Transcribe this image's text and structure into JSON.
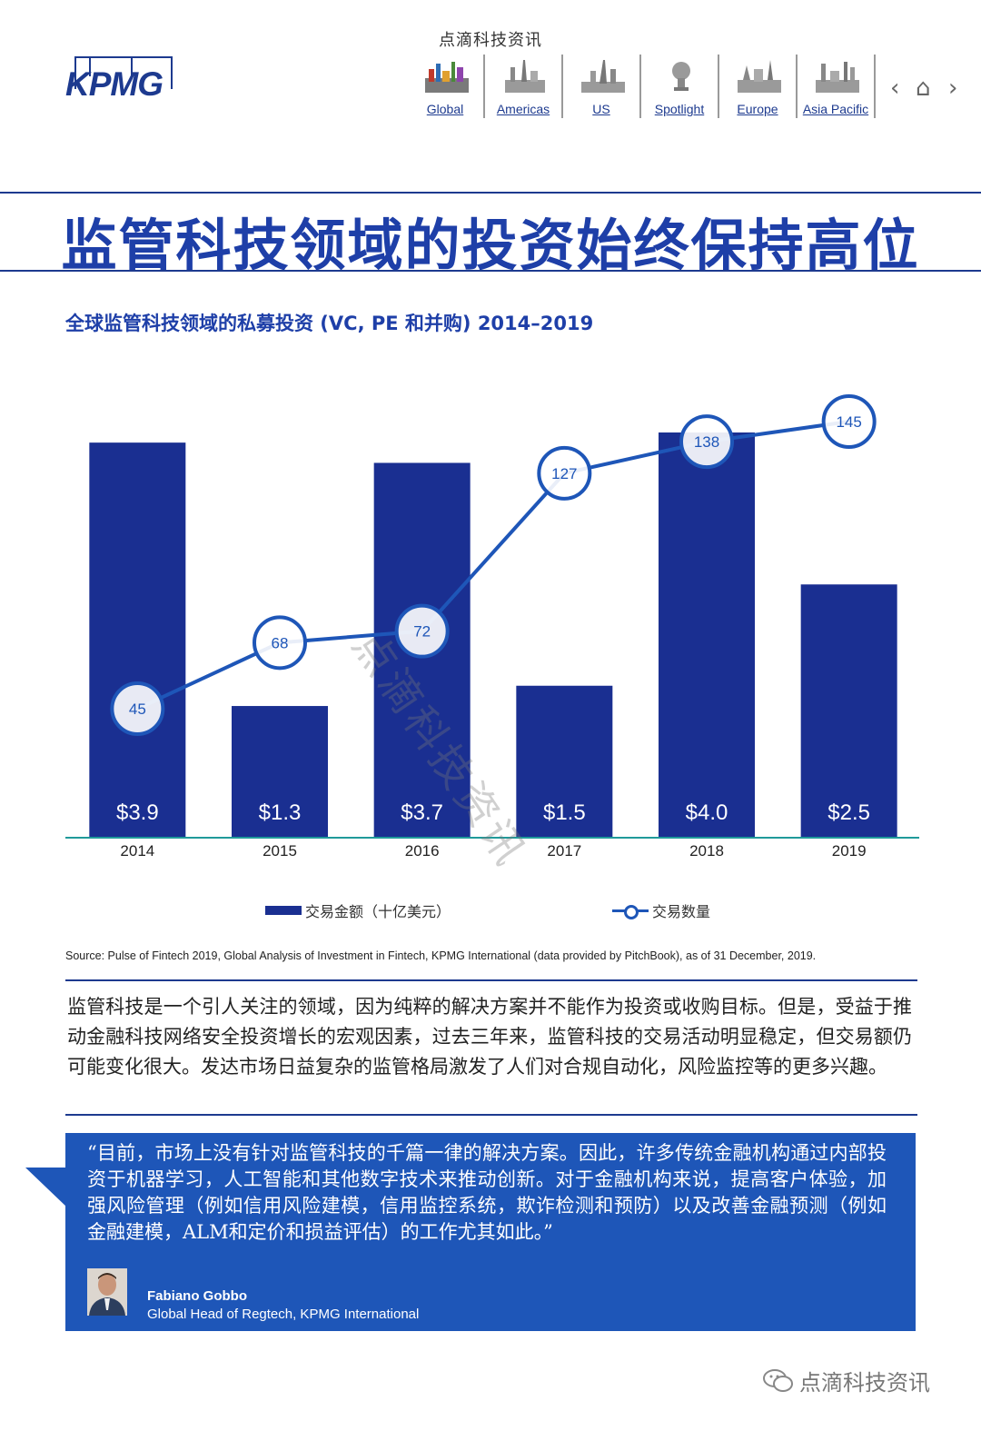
{
  "header": {
    "caption": "点滴科技资讯",
    "logo": "KPMG",
    "nav": [
      {
        "label": "Global",
        "icon": "global-skyline-icon"
      },
      {
        "label": "Americas",
        "icon": "americas-skyline-icon"
      },
      {
        "label": "US",
        "icon": "us-skyline-icon"
      },
      {
        "label": "Spotlight",
        "icon": "spotlight-icon"
      },
      {
        "label": "Europe",
        "icon": "europe-skyline-icon"
      },
      {
        "label": "Asia Pacific",
        "icon": "asia-pacific-skyline-icon"
      }
    ],
    "arrows": {
      "prev": "‹",
      "home": "⌂",
      "next": "›"
    }
  },
  "page_title": "监管科技领域的投资始终保持高位",
  "chart_title": "全球监管科技领域的私募投资 (VC, PE 和并购) 2014–2019",
  "chart_data": {
    "type": "bar",
    "categories": [
      "2014",
      "2015",
      "2016",
      "2017",
      "2018",
      "2019"
    ],
    "series": [
      {
        "name": "交易金额（十亿美元）",
        "type": "bar",
        "values": [
          3.9,
          1.3,
          3.7,
          1.5,
          4.0,
          2.5
        ],
        "labels": [
          "$3.9",
          "$1.3",
          "$3.7",
          "$1.5",
          "$4.0",
          "$2.5"
        ]
      },
      {
        "name": "交易数量",
        "type": "line",
        "values": [
          45,
          68,
          72,
          127,
          138,
          145
        ],
        "labels": [
          "45",
          "68",
          "72",
          "127",
          "138",
          "145"
        ]
      }
    ],
    "legend_position": "bottom",
    "grid": false,
    "colors": {
      "bar": "#1a2f91",
      "line": "#1e56b8",
      "axis": "#1f9a9a"
    }
  },
  "legend": {
    "bar_label": "交易金额（十亿美元）",
    "line_label": "交易数量"
  },
  "source": "Source: Pulse of Fintech 2019, Global Analysis of Investment in Fintech, KPMG International (data provided by PitchBook), as of 31 December, 2019.",
  "body_text": "监管科技是一个引人关注的领域，因为纯粹的解决方案并不能作为投资或收购目标。但是，受益于推动金融科技网络安全投资增长的宏观因素，过去三年来，监管科技的交易活动明显稳定，但交易额仍可能变化很大。发达市场日益复杂的监管格局激发了人们对合规自动化，风险监控等的更多兴趣。",
  "quote": {
    "text": "“目前，市场上没有针对监管科技的千篇一律的解决方案。因此，许多传统金融机构通过内部投资于机器学习，人工智能和其他数字技术来推动创新。对于金融机构来说，提高客户体验，加强风险管理（例如信用风险建模，信用监控系统，欺诈检测和预防）以及改善金融预测（例如金融建模，ALM和定价和损益评估）的工作尤其如此。”",
    "author_name": "Fabiano Gobbo",
    "author_role": "Global Head of Regtech, KPMG International"
  },
  "watermark": "点滴科技资讯",
  "colors": {
    "brand": "#1e3fa8",
    "dark_blue": "#1a2f91",
    "quote_bg": "#1e56b8"
  }
}
